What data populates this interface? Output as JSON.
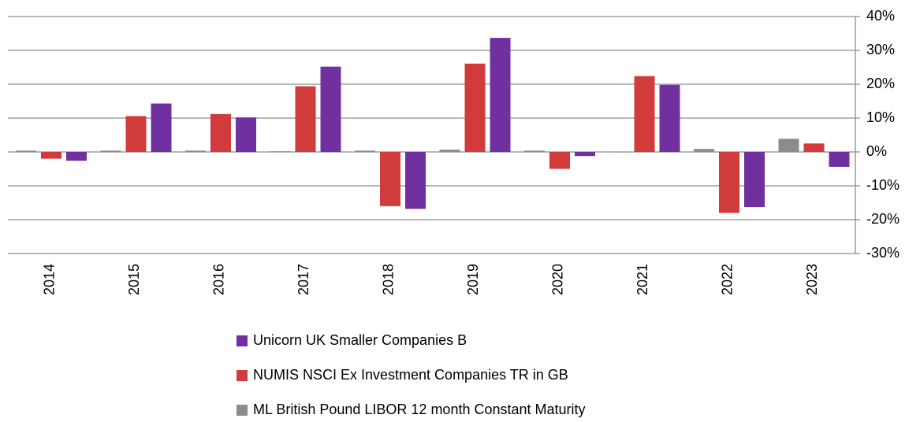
{
  "chart_data": {
    "type": "bar",
    "categories": [
      "2014",
      "2015",
      "2016",
      "2017",
      "2018",
      "2019",
      "2020",
      "2021",
      "2022",
      "2023"
    ],
    "series": [
      {
        "name": "Unicorn UK Smaller Companies B",
        "color": "#7030a0",
        "values": [
          -2.6,
          14.3,
          10.2,
          25.2,
          -16.8,
          33.7,
          -1.2,
          19.8,
          -16.3,
          -4.4
        ]
      },
      {
        "name": "NUMIS NSCI Ex Investment Companies TR in GB",
        "color": "#d13b3b",
        "values": [
          -2.0,
          10.6,
          11.2,
          19.4,
          -16.0,
          26.1,
          -5.0,
          22.4,
          -18.0,
          2.5
        ]
      },
      {
        "name": "ML British Pound LIBOR 12 month Constant Maturity",
        "color": "#8c8c8c",
        "values": [
          0.4,
          0.4,
          0.4,
          0.2,
          0.4,
          0.7,
          0.4,
          0.1,
          0.9,
          3.9
        ]
      }
    ],
    "ylim": [
      -30,
      40
    ],
    "yticks": [
      {
        "value": -30,
        "label": "-30%"
      },
      {
        "value": -20,
        "label": "-20%"
      },
      {
        "value": -10,
        "label": "-10%"
      },
      {
        "value": 0,
        "label": "0%"
      },
      {
        "value": 10,
        "label": "10%"
      },
      {
        "value": 20,
        "label": "20%"
      },
      {
        "value": 30,
        "label": "30%"
      },
      {
        "value": 40,
        "label": "40%"
      }
    ],
    "grid": true
  }
}
